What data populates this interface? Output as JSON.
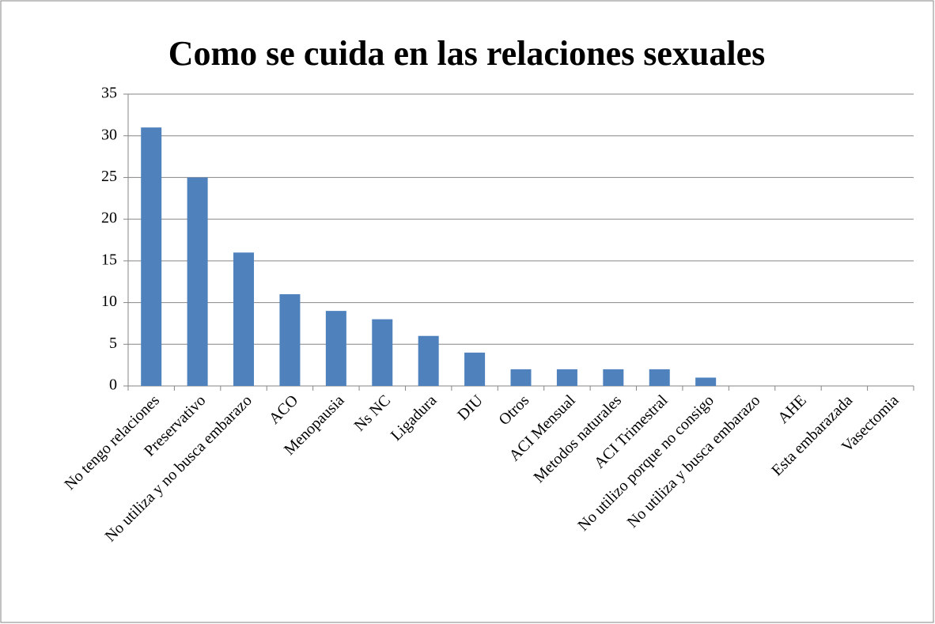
{
  "chart_data": {
    "type": "bar",
    "title": "Como se cuida en las relaciones sexuales",
    "categories": [
      "No tengo relaciones",
      "Preservativo",
      "No utiliza y no busca embarazo",
      "ACO",
      "Menopausia",
      "Ns NC",
      "Ligadura",
      "DIU",
      "Otros",
      "ACI Mensual",
      "Metodos naturales",
      "ACI Trimestral",
      "No utilizo porque no consigo",
      "No utiliza y busca embarazo",
      "AHE",
      "Esta embarazada",
      "Vasectomia"
    ],
    "values": [
      31,
      25,
      16,
      11,
      9,
      8,
      6,
      4,
      2,
      2,
      2,
      2,
      1,
      0,
      0,
      0,
      0
    ],
    "color": "#4f81bd",
    "ylim": [
      0,
      35
    ],
    "yticks": [
      0,
      5,
      10,
      15,
      20,
      25,
      30,
      35
    ],
    "grid": true
  }
}
